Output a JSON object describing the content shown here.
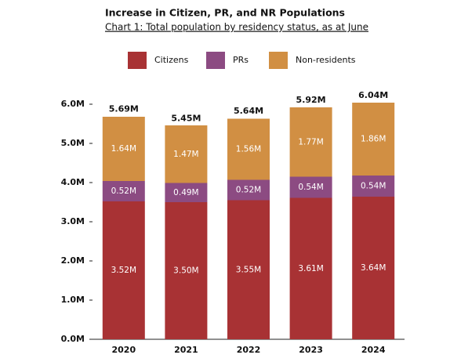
{
  "chart_data": {
    "type": "stacked-bar",
    "title": "Increase in Citizen, PR, and NR Populations",
    "subtitle": "Chart 1: Total population by residency status, as at June",
    "categories": [
      "2020",
      "2021",
      "2022",
      "2023",
      "2024"
    ],
    "series": [
      {
        "name": "Citizens",
        "color": "#a83234",
        "values": [
          3.52,
          3.5,
          3.55,
          3.61,
          3.64
        ],
        "value_labels": [
          "3.52M",
          "3.50M",
          "3.55M",
          "3.61M",
          "3.64M"
        ]
      },
      {
        "name": "PRs",
        "color": "#8c4b82",
        "values": [
          0.52,
          0.49,
          0.52,
          0.54,
          0.54
        ],
        "value_labels": [
          "0.52M",
          "0.49M",
          "0.52M",
          "0.54M",
          "0.54M"
        ]
      },
      {
        "name": "Non-residents",
        "color": "#d18f43",
        "values": [
          1.64,
          1.47,
          1.56,
          1.77,
          1.86
        ],
        "value_labels": [
          "1.64M",
          "1.47M",
          "1.56M",
          "1.77M",
          "1.86M"
        ]
      }
    ],
    "totals": {
      "values": [
        5.69,
        5.45,
        5.64,
        5.92,
        6.04
      ],
      "value_labels": [
        "5.69M",
        "5.45M",
        "5.64M",
        "5.92M",
        "6.04M"
      ]
    },
    "ylim": [
      0,
      6
    ],
    "yticks": [
      {
        "value": 0,
        "label": "0.0M"
      },
      {
        "value": 1,
        "label": "1.0M"
      },
      {
        "value": 2,
        "label": "2.0M"
      },
      {
        "value": 3,
        "label": "3.0M"
      },
      {
        "value": 4,
        "label": "4.0M"
      },
      {
        "value": 5,
        "label": "5.0M"
      },
      {
        "value": 6,
        "label": "6.0M"
      }
    ],
    "legend": "top"
  }
}
